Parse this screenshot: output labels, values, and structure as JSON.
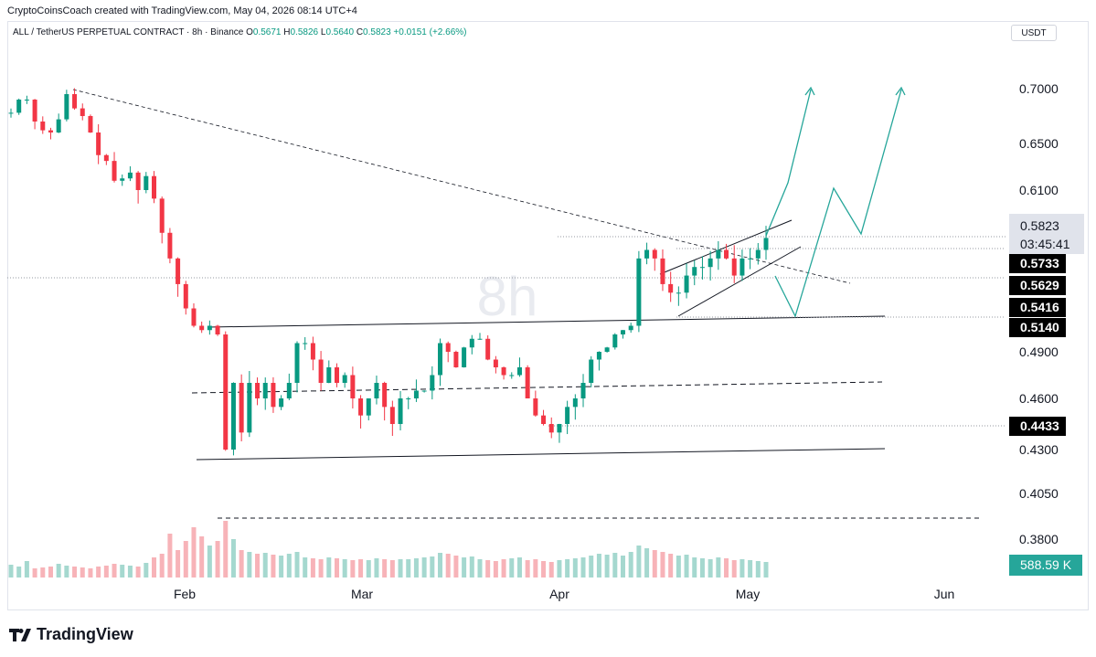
{
  "header": {
    "credit": "CryptoCoinsCoach created with TradingView.com, May 04, 2026 08:14 UTC+4",
    "symbol": "ALL / TetherUS PERPETUAL CONTRACT · 8h · Binance",
    "o_label": "O",
    "o_value": "0.5671",
    "h_label": "H",
    "h_value": "0.5826",
    "l_label": "L",
    "l_value": "0.5640",
    "c_label": "C",
    "c_value": "0.5823",
    "change": "+0.0151 (+2.66%)",
    "currency": "USDT"
  },
  "brand": {
    "name": "TradingView"
  },
  "colors": {
    "up": "#089981",
    "down": "#f23645",
    "projection": "#26a69a",
    "line": "#131722"
  },
  "chart_data": {
    "type": "candlestick",
    "timeframe": "8h",
    "watermark": "8h",
    "y_ticks": [
      "0.7000",
      "0.6500",
      "0.6100",
      "0.5823",
      "0.4900",
      "0.4600",
      "0.4300",
      "0.4050",
      "0.3800"
    ],
    "x_ticks": [
      "Feb",
      "Mar",
      "Apr",
      "May",
      "Jun"
    ],
    "ylim": [
      0.37,
      0.72
    ],
    "last_price": "0.5823",
    "countdown": "03:45:41",
    "price_labels": [
      "0.5733",
      "0.5629",
      "0.5416",
      "0.5140",
      "0.4433"
    ],
    "volume_label": "588.59 K",
    "close_path": [
      0.678,
      0.69,
      0.69,
      0.67,
      0.662,
      0.66,
      0.672,
      0.695,
      0.682,
      0.675,
      0.66,
      0.64,
      0.635,
      0.618,
      0.62,
      0.625,
      0.61,
      0.622,
      0.605,
      0.585,
      0.57,
      0.555,
      0.54,
      0.52,
      0.515,
      0.52,
      0.51,
      0.43,
      0.47,
      0.44,
      0.47,
      0.46,
      0.47,
      0.455,
      0.46,
      0.47,
      0.5,
      0.5,
      0.485,
      0.47,
      0.48,
      0.47,
      0.475,
      0.46,
      0.45,
      0.46,
      0.47,
      0.455,
      0.445,
      0.46,
      0.46,
      0.465,
      0.465,
      0.475,
      0.5,
      0.49,
      0.48,
      0.495,
      0.505,
      0.505,
      0.485,
      0.48,
      0.475,
      0.475,
      0.48,
      0.46,
      0.45,
      0.445,
      0.44,
      0.445,
      0.455,
      0.46,
      0.47,
      0.485,
      0.49,
      0.495,
      0.51,
      0.515,
      0.52,
      0.57,
      0.575,
      0.57,
      0.555,
      0.55,
      0.55,
      0.56,
      0.565,
      0.565,
      0.57,
      0.575,
      0.57,
      0.56,
      0.57,
      0.57,
      0.575,
      0.582
    ],
    "volume_path": [
      14,
      12,
      18,
      10,
      11,
      12,
      15,
      13,
      12,
      11,
      10,
      12,
      13,
      15,
      14,
      13,
      12,
      16,
      22,
      26,
      48,
      30,
      40,
      55,
      45,
      35,
      40,
      62,
      42,
      30,
      28,
      26,
      27,
      25,
      24,
      26,
      28,
      22,
      21,
      20,
      22,
      21,
      20,
      19,
      20,
      19,
      21,
      20,
      19,
      20,
      20,
      21,
      22,
      23,
      27,
      26,
      24,
      22,
      23,
      20,
      19,
      18,
      20,
      21,
      22,
      19,
      20,
      18,
      17,
      19,
      20,
      21,
      22,
      24,
      26,
      25,
      27,
      24,
      28,
      35,
      32,
      30,
      28,
      26,
      24,
      25,
      22,
      21,
      20,
      22,
      21,
      19,
      20,
      19,
      18,
      17
    ]
  }
}
